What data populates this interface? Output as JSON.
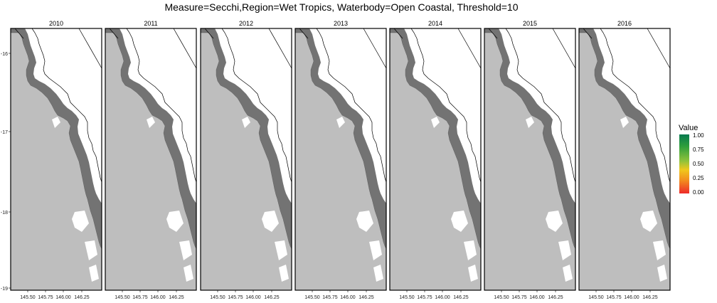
{
  "title": "Measure=Secchi,Region=Wet Tropics, Waterbody=Open Coastal, Threshold=10",
  "panels": [
    {
      "label": "2010"
    },
    {
      "label": "2011"
    },
    {
      "label": "2012"
    },
    {
      "label": "2013"
    },
    {
      "label": "2014"
    },
    {
      "label": "2015"
    },
    {
      "label": "2016"
    }
  ],
  "axes": {
    "x_ticks": [
      "145.50",
      "145.75",
      "146.00",
      "146.25"
    ],
    "y_ticks": [
      "-16",
      "-17",
      "-18",
      "-19"
    ]
  },
  "legend": {
    "title": "Value",
    "ticks": [
      "1.00",
      "0.75",
      "0.50",
      "0.25",
      "0.00"
    ]
  },
  "colors": {
    "land": "#bebebe",
    "zone": "#737373",
    "ocean": "#ffffff",
    "scale_high": "#087a4f",
    "scale_low": "#ee2a2a"
  }
}
